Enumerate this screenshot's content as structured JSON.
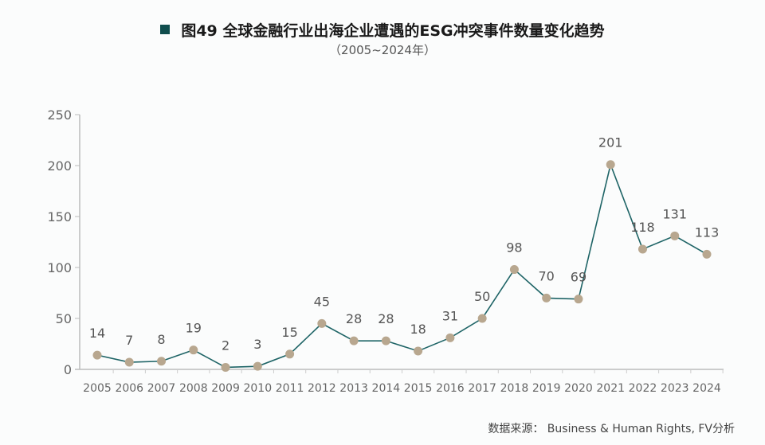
{
  "title": "图49  全球金融行业出海企业遭遇的ESG冲突事件数量变化趋势",
  "subtitle": "（2005~2024年）",
  "source": "数据来源：  Business & Human Rights, FV分析",
  "colors": {
    "line": "#1e6466",
    "marker": "#b8a78f",
    "title_square": "#0f4d4d"
  },
  "chart_data": {
    "type": "line",
    "title": "图49  全球金融行业出海企业遭遇的ESG冲突事件数量变化趋势",
    "subtitle": "（2005~2024年）",
    "xlabel": "",
    "ylabel": "",
    "categories": [
      "2005",
      "2006",
      "2007",
      "2008",
      "2009",
      "2010",
      "2011",
      "2012",
      "2013",
      "2014",
      "2015",
      "2016",
      "2017",
      "2018",
      "2019",
      "2020",
      "2021",
      "2022",
      "2023",
      "2024"
    ],
    "values": [
      14,
      7,
      8,
      19,
      2,
      3,
      15,
      45,
      28,
      28,
      18,
      31,
      50,
      98,
      70,
      69,
      201,
      118,
      131,
      113
    ],
    "ylim": [
      0,
      250
    ],
    "yticks": [
      0,
      50,
      100,
      150,
      200,
      250
    ],
    "grid": false,
    "data_labels": true
  }
}
